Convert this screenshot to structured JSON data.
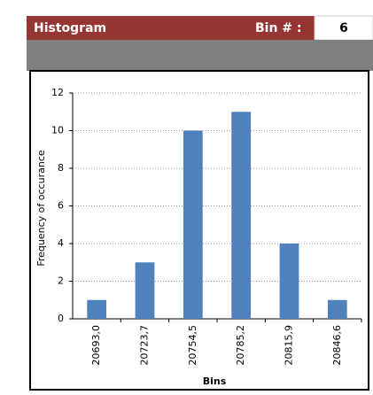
{
  "header": {
    "title": "Histogram",
    "bin_label": "Bin # :",
    "bin_value": 6
  },
  "chart_data": {
    "type": "bar",
    "categories": [
      "20693,0",
      "20723,7",
      "20754,5",
      "20785,2",
      "20815,9",
      "20846,6"
    ],
    "values": [
      1,
      3,
      10,
      11,
      4,
      1
    ],
    "color": "#4f81bd",
    "ylim": [
      0,
      12
    ],
    "yticks": [
      0,
      2,
      4,
      6,
      8,
      10,
      12
    ],
    "grid": true,
    "ylabel": "Frequency of occurance",
    "xlabel": "Bins"
  }
}
